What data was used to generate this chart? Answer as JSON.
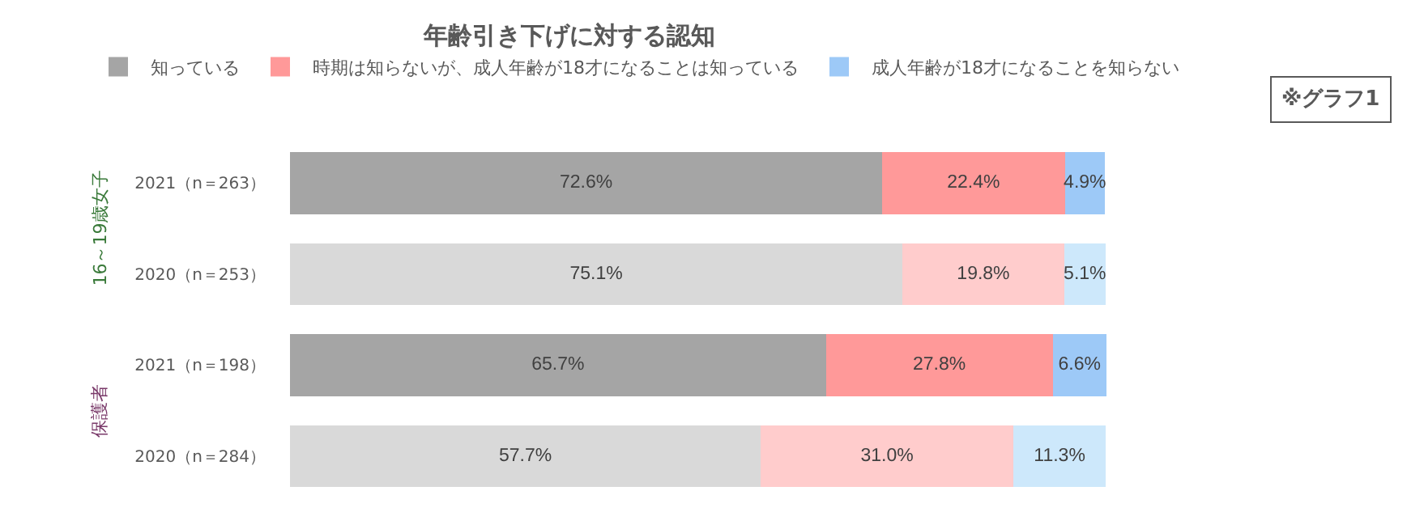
{
  "chart_data": {
    "type": "bar",
    "orientation": "horizontal",
    "stacked": true,
    "title": "年齢引き下げに対する認知",
    "categories": [
      "2021（n＝263）",
      "2020（n＝253）",
      "2021（n＝198）",
      "2020（n＝284）"
    ],
    "series": [
      {
        "name": "知っている",
        "colors": [
          "#a5a5a5",
          "#d9d9d9",
          "#a5a5a5",
          "#d9d9d9"
        ],
        "values": [
          72.6,
          75.1,
          65.7,
          57.7
        ],
        "value_labels": [
          "72.6%",
          "75.1%",
          "65.7%",
          "57.7%"
        ]
      },
      {
        "name": "時期は知らないが、成人年齢が18才になることは知っている",
        "colors": [
          "#ff9999",
          "#ffcccc",
          "#ff9999",
          "#ffcccc"
        ],
        "values": [
          22.4,
          19.8,
          27.8,
          31.0
        ],
        "value_labels": [
          "22.4%",
          "19.8%",
          "27.8%",
          "31.0%"
        ]
      },
      {
        "name": "成人年齢が18才になることを知らない",
        "colors": [
          "#9dc9f7",
          "#cde8fb",
          "#9dc9f7",
          "#cde8fb"
        ],
        "values": [
          4.9,
          5.1,
          6.6,
          11.3
        ],
        "value_labels": [
          "4.9%",
          "5.1%",
          "6.6%",
          "11.3%"
        ]
      }
    ],
    "xlim": [
      0,
      100.1
    ],
    "tick_labels": "y",
    "legend": "top left",
    "annotations": [
      "16～19歳女子",
      "保護者",
      "※グラフ1"
    ]
  }
}
